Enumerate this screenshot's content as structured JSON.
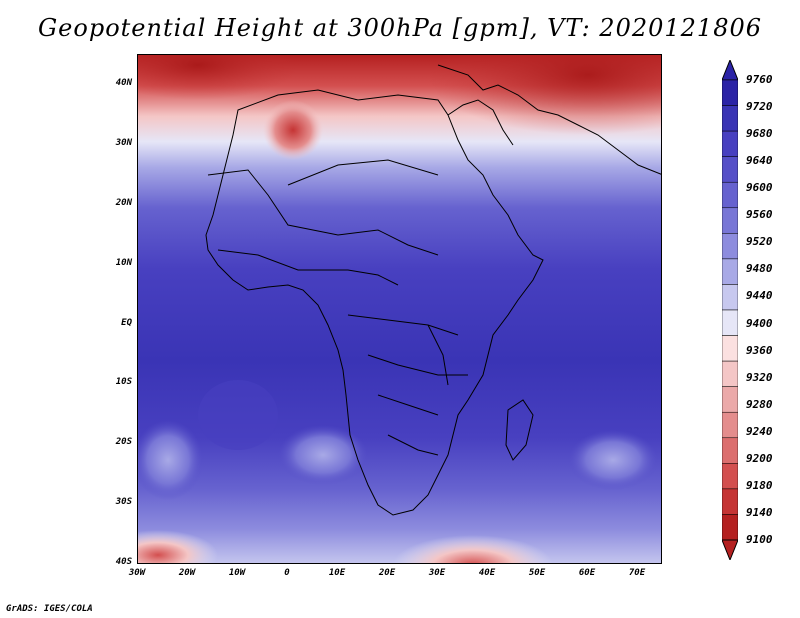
{
  "title": "Geopotential Height at 300hPa [gpm], VT: 2020121806",
  "footer": "GrADS: IGES/COLA",
  "y_ticks": [
    "40N",
    "30N",
    "20N",
    "10N",
    "EQ",
    "10S",
    "20S",
    "30S",
    "40S"
  ],
  "x_ticks": [
    "30W",
    "20W",
    "10W",
    "0",
    "10E",
    "20E",
    "30E",
    "40E",
    "50E",
    "60E",
    "70E"
  ],
  "colorbar": {
    "labels": [
      "9760",
      "9720",
      "9680",
      "9640",
      "9600",
      "9560",
      "9520",
      "9480",
      "9440",
      "9400",
      "9360",
      "9320",
      "9280",
      "9240",
      "9200",
      "9180",
      "9140",
      "9100"
    ],
    "colors": [
      "#2b23a6",
      "#3a34b5",
      "#4840c0",
      "#5650c8",
      "#6662cf",
      "#7876d6",
      "#8d8cde",
      "#a8a9e6",
      "#c7c8ef",
      "#e6e6f7",
      "#fbe0e0",
      "#f4c6c6",
      "#eba9a9",
      "#e48d8d",
      "#dc6e6e",
      "#d34f4f",
      "#c53434",
      "#b42020"
    ]
  },
  "colors": {
    "high": "#3a34b5",
    "low": "#b42020",
    "coast": "#000000"
  }
}
